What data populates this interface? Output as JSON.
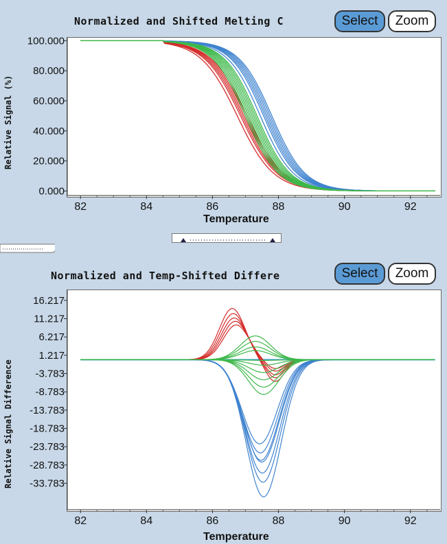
{
  "top_panel": {
    "title": "Normalized and Shifted Melting C",
    "select_label": "Select",
    "zoom_label": "Zoom",
    "ylabel": "Relative Signal (%)",
    "xlabel": "Temperature"
  },
  "bottom_panel": {
    "title": "Normalized and Temp-Shifted Differe",
    "select_label": "Select",
    "zoom_label": "Zoom",
    "ylabel": "Relative Signal Difference",
    "xlabel": "Temperature"
  },
  "colors": {
    "red": "#d42a2a",
    "blue": "#3f83cf",
    "green": "#3db84a",
    "bg": "#c8d8e8"
  },
  "chart_data": [
    {
      "type": "line",
      "title": "Normalized and Shifted Melting C",
      "xlabel": "Temperature",
      "ylabel": "Relative Signal (%)",
      "xlim": [
        81.6,
        92.9
      ],
      "ylim": [
        -3,
        102
      ],
      "xticks": [
        82,
        84,
        86,
        88,
        90,
        92
      ],
      "yticks": [
        0,
        20,
        40,
        60,
        80,
        100
      ],
      "ytick_labels": [
        "0.000",
        "20.000",
        "40.000",
        "60.000",
        "80.000",
        "100.000"
      ],
      "curve_model": "sigmoid (Tm, width)",
      "series": [
        {
          "color": "red",
          "tm": [
            86.75,
            86.85,
            86.9,
            86.95,
            87.0,
            87.05
          ],
          "width": 0.55
        },
        {
          "color": "blue",
          "tm": [
            87.45,
            87.55,
            87.6,
            87.65,
            87.7,
            87.75,
            87.8
          ],
          "width": 0.5
        },
        {
          "color": "green",
          "tm": [
            87.0,
            87.05,
            87.1,
            87.15,
            87.2,
            87.25,
            87.3,
            87.35
          ],
          "width": 0.5
        }
      ]
    },
    {
      "type": "line",
      "title": "Normalized and Temp-Shifted Differe",
      "xlabel": "Temperature",
      "ylabel": "Relative Signal Difference",
      "xlim": [
        81.6,
        92.9
      ],
      "ylim": [
        -41,
        19
      ],
      "xticks": [
        82,
        84,
        86,
        88,
        90,
        92
      ],
      "yticks": [
        16.217,
        11.217,
        6.217,
        1.217,
        -3.783,
        -8.783,
        -13.783,
        -18.783,
        -23.783,
        -28.783,
        -33.783
      ],
      "ytick_labels": [
        "16.217",
        "11.217",
        "6.217",
        "1.217",
        "-3.783",
        "-8.783",
        "-13.783",
        "-18.783",
        "-23.783",
        "-28.783",
        "-33.783"
      ],
      "series": [
        {
          "color": "red",
          "peak_temp": 86.6,
          "peaks": [
            14.0,
            12.6,
            11.4,
            10.5,
            9.5
          ],
          "trough_temp": 87.9,
          "troughs": [
            -6.0,
            -5.0,
            -4.2,
            -3.2,
            -2.5
          ]
        },
        {
          "color": "blue",
          "peak_temp": 87.55,
          "peaks": [
            -37.5,
            -33.5,
            -31.0,
            -28.0,
            -27.5,
            -25.5,
            -23.0
          ]
        },
        {
          "color": "green",
          "peak_temp": 87.3,
          "peaks": [
            6.5,
            5.0,
            3.5,
            2.5,
            -0.2,
            -1.5,
            -3.5,
            -5.5,
            -7.5,
            -9.5
          ]
        }
      ]
    }
  ]
}
